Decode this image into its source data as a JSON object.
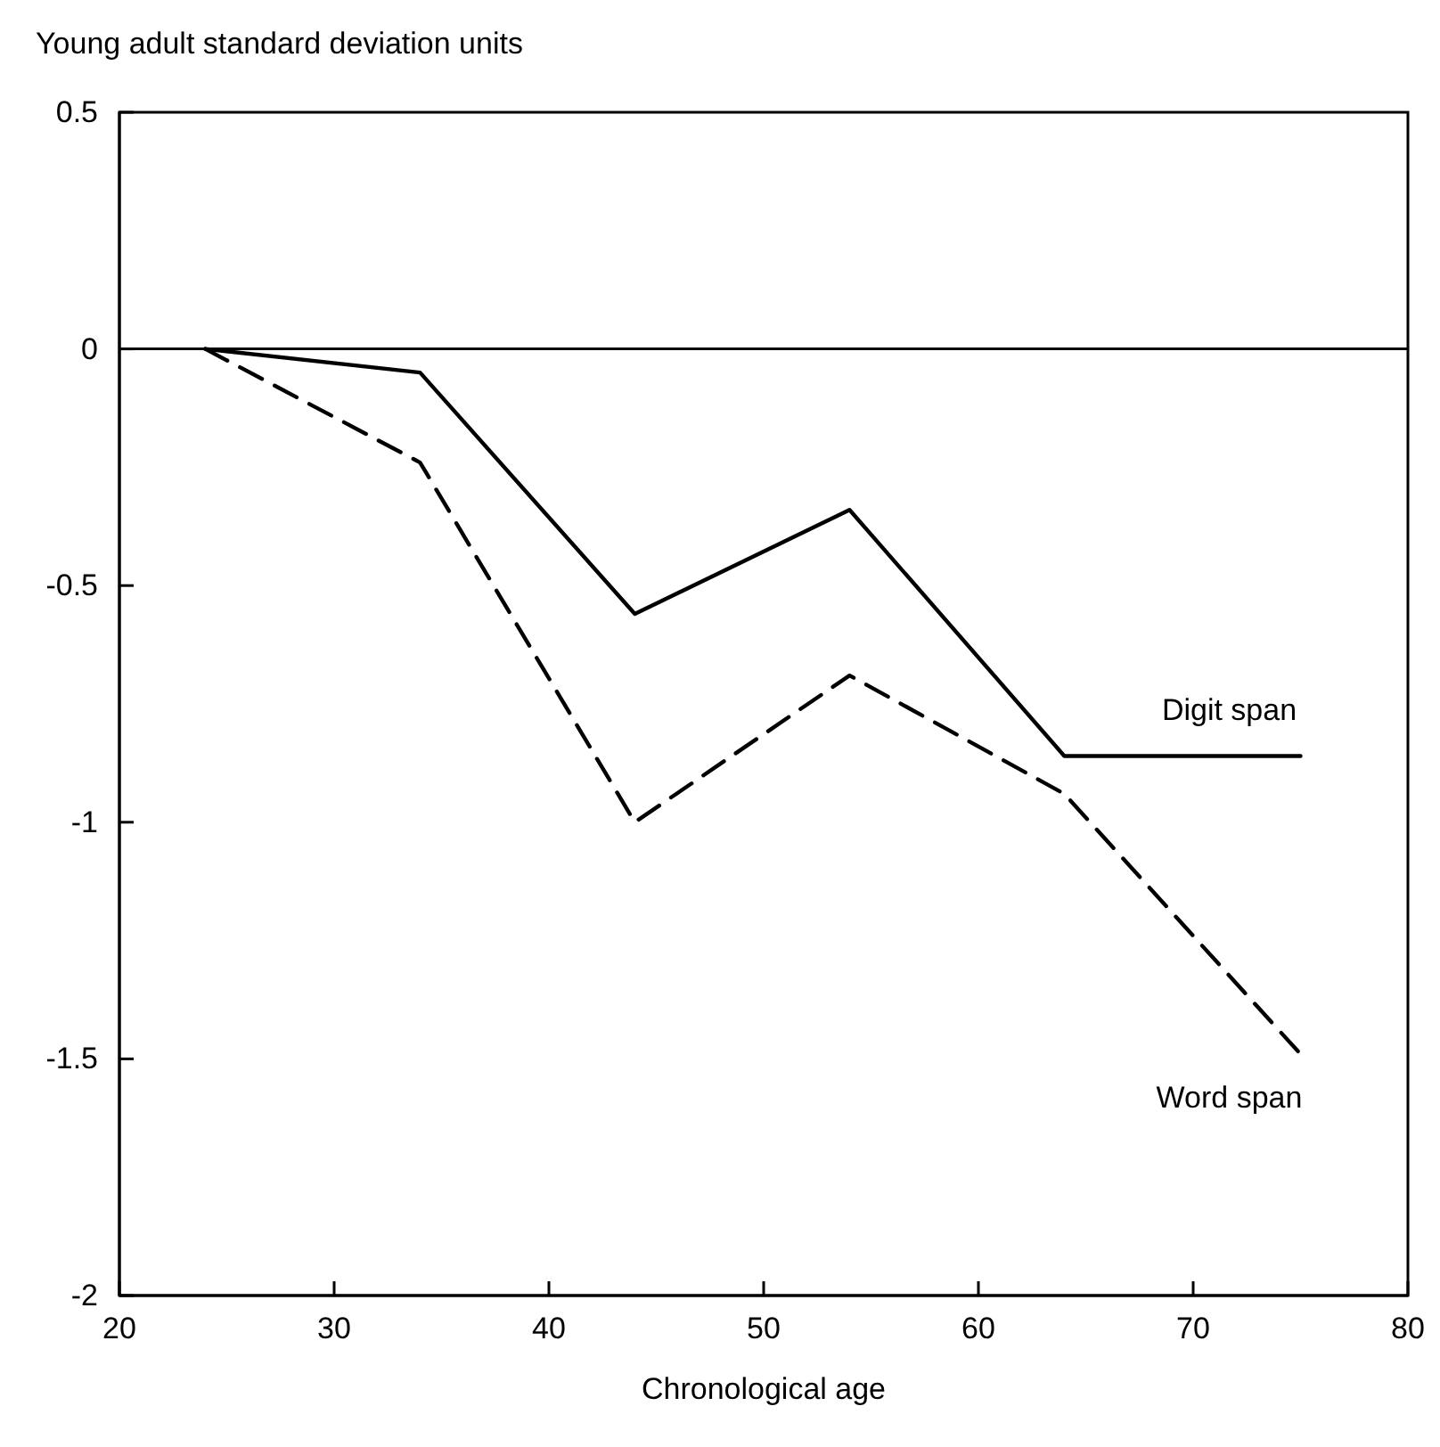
{
  "chart_data": {
    "type": "line",
    "ylabel": "Young adult standard deviation units",
    "xlabel": "Chronological age",
    "xlim": [
      20,
      80
    ],
    "xticks": [
      20,
      30,
      40,
      50,
      60,
      70,
      80
    ],
    "ylim": [
      -2,
      0.5
    ],
    "yticks": [
      -2,
      -1.5,
      -1,
      -0.5,
      0,
      0.5
    ],
    "x": [
      24,
      34,
      44,
      54,
      64,
      75
    ],
    "series": [
      {
        "name": "Digit span",
        "color": "#000000",
        "line_style": "solid",
        "values": [
          0,
          -0.05,
          -0.56,
          -0.34,
          -0.86,
          -0.86
        ]
      },
      {
        "name": "Word span",
        "color": "#000000",
        "line_style": "dashed",
        "values": [
          0,
          -0.24,
          -1.0,
          -0.69,
          -0.94,
          -1.49
        ]
      }
    ],
    "ref_lines": [
      {
        "axis": "y",
        "value": 0,
        "color": "#000000"
      }
    ],
    "grid": false,
    "marker": "none"
  }
}
